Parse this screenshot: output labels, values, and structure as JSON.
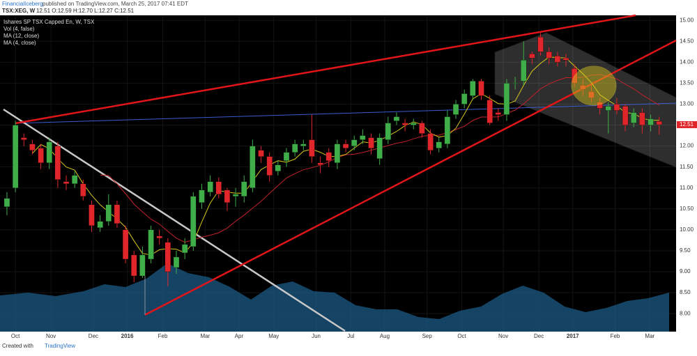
{
  "header": {
    "author": "FinancialIceberg",
    "published": "published on TradingView.com, March 25, 2017 07:41 EDT",
    "symbol": "TSX:XEG, W",
    "ohlc_text": "12.51 O:12.59 H:12.70 L:12.27 C:12.51"
  },
  "legend": {
    "instrument": "Ishares SP TSX Capped En, W, TSX",
    "volume": "Vol (4, false)",
    "ma_slow": "MA (12, close)",
    "ma_fast": "MA (4, close)"
  },
  "footer": {
    "text": "Created with",
    "brand": "TradingView"
  },
  "chart_data": {
    "type": "candlestick",
    "up_color": "#3fae49",
    "down_color": "#e0262b",
    "ma_fast_color": "#d8c81c",
    "ma_slow_color": "#c0222a",
    "open": [
      10.55,
      11.0,
      12.2,
      12.05,
      11.95,
      11.6,
      12.0,
      11.15,
      11.1,
      11.1,
      10.6,
      10.05,
      10.2,
      10.6,
      10.0,
      9.4,
      8.9,
      9.3,
      9.85,
      9.7,
      9.1,
      9.45,
      9.6,
      10.65,
      10.9,
      11.15,
      10.95,
      10.8,
      10.8,
      11.0,
      11.9,
      11.75,
      11.4,
      11.65,
      11.85,
      12.0,
      12.15,
      11.6,
      11.85,
      11.6,
      12.05,
      12.0,
      12.15,
      12.2,
      11.7,
      12.15,
      12.6,
      12.55,
      12.5,
      12.55,
      12.3,
      11.95,
      12.05,
      12.75,
      13.0,
      13.2,
      13.55,
      13.1,
      12.8,
      12.75,
      13.5,
      13.55,
      14.2,
      14.6,
      14.25,
      14.15,
      14.1,
      13.85,
      13.45,
      13.3,
      13.05,
      12.85,
      13.0,
      12.95,
      12.55,
      12.8,
      12.5,
      12.59
    ],
    "close": [
      10.75,
      12.5,
      12.15,
      11.9,
      11.6,
      12.1,
      11.2,
      11.1,
      11.3,
      10.8,
      10.1,
      10.2,
      10.6,
      10.15,
      9.3,
      8.9,
      9.4,
      10.0,
      9.8,
      9.0,
      9.35,
      9.65,
      10.8,
      10.95,
      11.15,
      10.85,
      10.65,
      10.85,
      11.15,
      12.0,
      11.75,
      11.3,
      11.55,
      11.85,
      12.05,
      12.05,
      11.75,
      11.55,
      11.65,
      12.05,
      11.95,
      12.15,
      12.25,
      11.95,
      12.2,
      12.55,
      12.7,
      12.5,
      12.55,
      12.3,
      11.9,
      12.1,
      12.7,
      13.0,
      13.25,
      13.55,
      13.2,
      12.55,
      12.75,
      13.5,
      13.5,
      14.05,
      14.1,
      14.25,
      14.1,
      14.0,
      14.05,
      13.5,
      13.35,
      13.15,
      12.9,
      12.95,
      12.85,
      12.5,
      12.8,
      12.5,
      12.65,
      12.51
    ],
    "high": [
      10.9,
      12.6,
      12.3,
      12.15,
      12.05,
      12.2,
      12.1,
      11.3,
      11.4,
      11.2,
      10.7,
      10.35,
      10.85,
      10.7,
      10.1,
      9.5,
      9.6,
      10.1,
      10.0,
      9.8,
      9.5,
      9.8,
      10.9,
      11.1,
      11.3,
      11.25,
      11.0,
      11.0,
      11.3,
      12.15,
      12.0,
      11.85,
      11.65,
      11.95,
      12.15,
      12.15,
      12.75,
      11.75,
      11.95,
      12.15,
      12.15,
      12.25,
      12.4,
      12.3,
      12.3,
      12.7,
      12.8,
      12.65,
      12.65,
      12.6,
      12.4,
      12.2,
      12.85,
      13.1,
      13.35,
      13.6,
      13.6,
      13.2,
      12.9,
      13.6,
      13.65,
      14.5,
      14.25,
      14.7,
      14.35,
      14.25,
      14.2,
      13.95,
      13.6,
      13.5,
      13.15,
      13.05,
      13.15,
      13.0,
      12.9,
      12.9,
      12.75,
      12.7
    ],
    "low": [
      10.35,
      10.9,
      12.0,
      11.8,
      11.45,
      11.45,
      11.0,
      10.95,
      11.0,
      10.7,
      9.95,
      9.95,
      10.1,
      10.05,
      9.2,
      8.75,
      8.85,
      9.2,
      9.65,
      8.65,
      8.95,
      9.3,
      9.5,
      10.5,
      10.8,
      10.75,
      10.45,
      10.55,
      10.65,
      10.9,
      11.6,
      11.15,
      11.3,
      11.5,
      11.75,
      11.9,
      11.6,
      11.35,
      11.5,
      11.45,
      11.85,
      11.9,
      12.05,
      11.8,
      11.55,
      12.05,
      12.5,
      12.35,
      12.4,
      12.2,
      11.8,
      11.85,
      11.95,
      12.65,
      12.9,
      13.1,
      13.1,
      12.5,
      12.6,
      12.6,
      13.35,
      13.45,
      13.95,
      14.15,
      13.95,
      13.9,
      13.9,
      13.4,
      13.2,
      13.05,
      12.75,
      12.3,
      12.75,
      12.35,
      12.45,
      12.3,
      12.35,
      12.27
    ],
    "xlim": [
      -0.82,
      79.0
    ],
    "xticks": [
      {
        "value": 1,
        "label": "Oct"
      },
      {
        "value": 5.2,
        "label": "Nov"
      },
      {
        "value": 10.2,
        "label": "Dec"
      },
      {
        "value": 14.2,
        "label": "2016"
      },
      {
        "value": 18.4,
        "label": "Feb"
      },
      {
        "value": 23.4,
        "label": "Mar"
      },
      {
        "value": 27.4,
        "label": "Apr"
      },
      {
        "value": 31.5,
        "label": "May"
      },
      {
        "value": 36.5,
        "label": "Jun"
      },
      {
        "value": 40.6,
        "label": "Jul"
      },
      {
        "value": 44.6,
        "label": "Aug"
      },
      {
        "value": 49.6,
        "label": "Sep"
      },
      {
        "value": 53.7,
        "label": "Oct"
      },
      {
        "value": 58.6,
        "label": "Nov"
      },
      {
        "value": 62.8,
        "label": "Dec"
      },
      {
        "value": 66.8,
        "label": "2017"
      },
      {
        "value": 71.8,
        "label": "Feb"
      },
      {
        "value": 75.9,
        "label": "Mar"
      }
    ],
    "ylim": [
      7.57,
      15.12
    ],
    "yticks": [
      {
        "value": 8,
        "label": "8.00"
      },
      {
        "value": 8.5,
        "label": "8.50"
      },
      {
        "value": 9,
        "label": "9.00"
      },
      {
        "value": 9.5,
        "label": "9.50"
      },
      {
        "value": 10,
        "label": "10.00"
      },
      {
        "value": 10.5,
        "label": "10.50"
      },
      {
        "value": 11,
        "label": "11.00"
      },
      {
        "value": 11.5,
        "label": "11.50"
      },
      {
        "value": 12,
        "label": "12.00"
      },
      {
        "value": 12.5,
        "label": "12.50"
      },
      {
        "value": 13,
        "label": "13.00"
      },
      {
        "value": 13.5,
        "label": "13.50"
      },
      {
        "value": 14,
        "label": "14.00"
      },
      {
        "value": 14.5,
        "label": "14.50"
      },
      {
        "value": 15,
        "label": "15.00"
      }
    ]
  }
}
